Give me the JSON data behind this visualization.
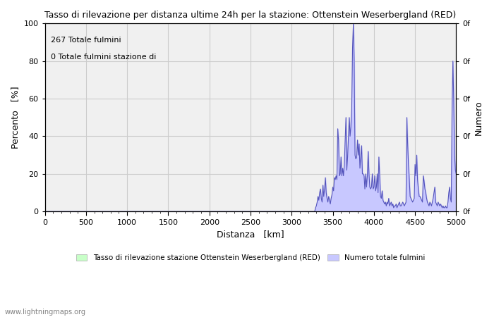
{
  "title": "Tasso di rilevazione per distanza ultime 24h per la stazione: Ottenstein Weserbergland (RED)",
  "xlabel": "Distanza   [km]",
  "ylabel_left": "Percento   [%]",
  "ylabel_right": "Numero",
  "annotation_line1": "267 Totale fulmini",
  "annotation_line2": "0 Totale fulmini stazione di",
  "xlim": [
    0,
    5000
  ],
  "ylim": [
    0,
    100
  ],
  "xticks": [
    0,
    500,
    1000,
    1500,
    2000,
    2500,
    3000,
    3500,
    4000,
    4500,
    5000
  ],
  "yticks_left": [
    0,
    20,
    40,
    60,
    80,
    100
  ],
  "yticks_right_values": [
    0,
    20,
    40,
    60,
    80,
    100
  ],
  "yticks_right_labels": [
    "0f",
    "0f",
    "0f",
    "0f",
    "0f",
    "0f"
  ],
  "background_color": "#ffffff",
  "plot_bg_color": "#f0f0f0",
  "grid_color": "#cccccc",
  "fill_color": "#c8c8ff",
  "line_color": "#5555bb",
  "legend_label_green": "Tasso di rilevazione stazione Ottenstein Weserbergland (RED)",
  "legend_label_blue": "Numero totale fulmini",
  "legend_color_green": "#c8ffc8",
  "legend_color_blue": "#c8c8ff",
  "watermark": "www.lightningmaps.org",
  "data_x": [
    0,
    3280,
    3290,
    3300,
    3310,
    3320,
    3330,
    3340,
    3350,
    3360,
    3370,
    3380,
    3390,
    3400,
    3410,
    3420,
    3430,
    3440,
    3450,
    3460,
    3470,
    3480,
    3490,
    3500,
    3510,
    3520,
    3530,
    3540,
    3550,
    3560,
    3570,
    3580,
    3590,
    3600,
    3610,
    3620,
    3630,
    3640,
    3650,
    3660,
    3670,
    3680,
    3690,
    3700,
    3710,
    3720,
    3730,
    3740,
    3750,
    3760,
    3770,
    3780,
    3790,
    3800,
    3810,
    3820,
    3830,
    3840,
    3850,
    3860,
    3870,
    3880,
    3890,
    3900,
    3910,
    3920,
    3930,
    3940,
    3950,
    3960,
    3970,
    3980,
    3990,
    4000,
    4010,
    4020,
    4030,
    4040,
    4050,
    4060,
    4070,
    4080,
    4090,
    4100,
    4110,
    4120,
    4130,
    4140,
    4150,
    4160,
    4170,
    4180,
    4190,
    4200,
    4210,
    4220,
    4230,
    4240,
    4250,
    4260,
    4270,
    4280,
    4290,
    4300,
    4310,
    4320,
    4330,
    4340,
    4350,
    4360,
    4370,
    4380,
    4390,
    4400,
    4410,
    4420,
    4430,
    4440,
    4450,
    4460,
    4470,
    4480,
    4490,
    4500,
    4510,
    4520,
    4530,
    4540,
    4550,
    4560,
    4570,
    4580,
    4590,
    4600,
    4610,
    4620,
    4630,
    4640,
    4650,
    4660,
    4670,
    4680,
    4690,
    4700,
    4710,
    4720,
    4730,
    4740,
    4750,
    4760,
    4770,
    4780,
    4790,
    4800,
    4810,
    4820,
    4830,
    4840,
    4850,
    4860,
    4870,
    4880,
    4890,
    4900,
    4910,
    4920,
    4930,
    4940,
    4950,
    4960,
    4970,
    4980,
    4990,
    5000
  ],
  "data_y": [
    0,
    0,
    2,
    3,
    5,
    8,
    6,
    10,
    12,
    7,
    5,
    14,
    8,
    12,
    18,
    10,
    7,
    5,
    8,
    6,
    4,
    7,
    9,
    13,
    11,
    18,
    17,
    19,
    17,
    44,
    38,
    19,
    20,
    29,
    19,
    23,
    19,
    25,
    38,
    50,
    22,
    29,
    40,
    50,
    40,
    45,
    55,
    87,
    100,
    80,
    30,
    28,
    29,
    38,
    30,
    36,
    23,
    29,
    35,
    20,
    20,
    19,
    12,
    20,
    13,
    19,
    32,
    20,
    13,
    12,
    13,
    20,
    12,
    13,
    19,
    11,
    13,
    20,
    10,
    29,
    19,
    8,
    7,
    11,
    6,
    5,
    4,
    5,
    3,
    5,
    4,
    7,
    3,
    4,
    5,
    3,
    4,
    2,
    3,
    3,
    4,
    2,
    3,
    4,
    5,
    3,
    3,
    4,
    5,
    4,
    3,
    4,
    5,
    50,
    36,
    25,
    17,
    8,
    7,
    6,
    5,
    6,
    7,
    25,
    19,
    30,
    17,
    12,
    8,
    8,
    7,
    6,
    5,
    19,
    16,
    12,
    10,
    7,
    5,
    4,
    3,
    5,
    4,
    3,
    5,
    7,
    10,
    13,
    5,
    4,
    3,
    5,
    4,
    3,
    4,
    3,
    2,
    3,
    2,
    2,
    3,
    2,
    2,
    5,
    10,
    13,
    7,
    5,
    55,
    80,
    59,
    30,
    22,
    20
  ]
}
